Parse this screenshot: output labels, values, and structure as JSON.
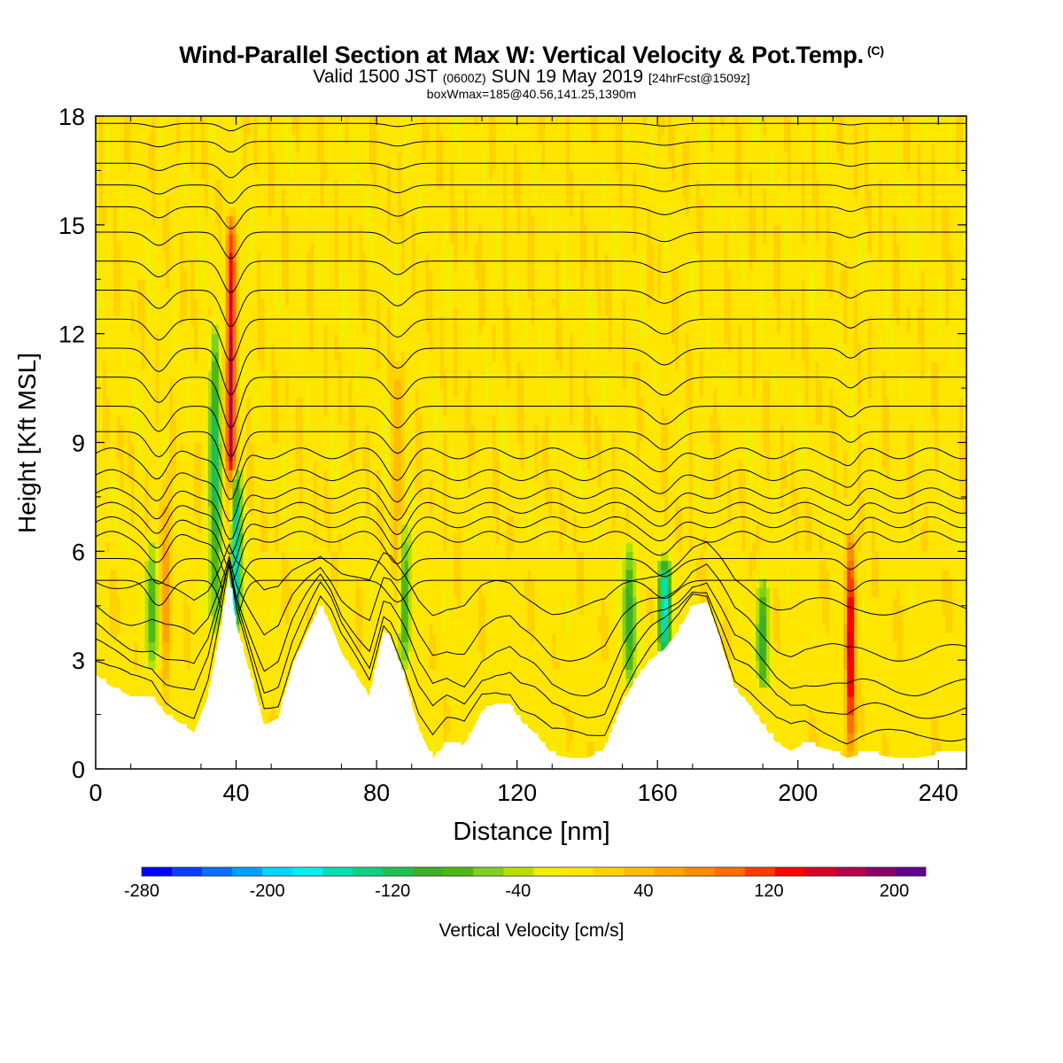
{
  "titles": {
    "main": "Wind-Parallel Section at Max W: Vertical Velocity & Pot.Temp.",
    "main_suffix": "(C)",
    "valid_a": "Valid 1500 JST",
    "valid_b": "(0600Z)",
    "valid_c": "SUN 19 May 2019",
    "valid_d": "[24hrFcst@1509z]",
    "box": "boxWmax=185@40.56,141.25,1390m"
  },
  "chart_data": {
    "type": "heatmap",
    "title": "Wind-Parallel Section at Max W: Vertical Velocity & Pot.Temp.",
    "xlabel": "Distance [nm]",
    "ylabel": "Height [Kft MSL]",
    "xlim": [
      0,
      248
    ],
    "ylim": [
      0,
      18
    ],
    "x_ticks": [
      0,
      40,
      80,
      120,
      160,
      200,
      240
    ],
    "y_ticks": [
      0,
      3,
      6,
      9,
      12,
      15,
      18
    ],
    "terrain_profile": {
      "x": [
        0,
        4,
        10,
        16,
        20,
        25,
        28,
        32,
        35,
        38,
        40,
        44,
        48,
        52,
        56,
        60,
        64,
        67,
        70,
        74,
        78,
        82,
        84,
        88,
        92,
        96,
        100,
        105,
        110,
        114,
        118,
        121,
        125,
        130,
        135,
        140,
        145,
        150,
        154,
        158,
        162,
        166,
        170,
        174,
        178,
        182,
        186,
        190,
        194,
        198,
        202,
        206,
        210,
        214,
        218,
        222,
        228,
        234,
        240,
        248
      ],
      "y": [
        2.6,
        2.3,
        2.0,
        2.0,
        1.5,
        1.2,
        1.0,
        2.0,
        3.5,
        5.3,
        4.0,
        2.6,
        1.2,
        1.4,
        2.8,
        3.7,
        4.5,
        4.0,
        3.2,
        2.6,
        2.0,
        3.8,
        3.6,
        2.5,
        1.1,
        0.3,
        0.7,
        0.6,
        1.6,
        1.8,
        1.8,
        1.3,
        1.0,
        0.4,
        0.3,
        0.3,
        0.5,
        1.8,
        2.5,
        3.0,
        3.3,
        3.8,
        4.5,
        4.6,
        3.5,
        2.2,
        1.8,
        1.2,
        0.7,
        0.5,
        0.7,
        0.6,
        0.5,
        0.3,
        0.4,
        0.4,
        0.3,
        0.3,
        0.4,
        0.4
      ]
    },
    "updraft_cores": [
      {
        "x": 38.5,
        "y_bottom": 5.3,
        "y_top": 15.0,
        "w_max": 185
      },
      {
        "x": 215.0,
        "y_bottom": 0.5,
        "y_top": 6.2,
        "w_max": 160
      },
      {
        "x": 20.0,
        "y_bottom": 2.0,
        "y_top": 8.0,
        "w_max": 60
      },
      {
        "x": 86.0,
        "y_bottom": 3.6,
        "y_top": 11.0,
        "w_max": 50
      }
    ],
    "downdraft_cores": [
      {
        "x": 34.0,
        "y_bottom": 4.0,
        "y_top": 12.0,
        "w_min": -120
      },
      {
        "x": 39.5,
        "y_bottom": 4.0,
        "y_top": 8.0,
        "w_min": -230
      },
      {
        "x": 16.0,
        "y_bottom": 3.0,
        "y_top": 6.0,
        "w_min": -80
      },
      {
        "x": 88.0,
        "y_bottom": 3.0,
        "y_top": 6.5,
        "w_min": -100
      },
      {
        "x": 152.0,
        "y_bottom": 2.5,
        "y_top": 6.0,
        "w_min": -110
      },
      {
        "x": 162.0,
        "y_bottom": 3.2,
        "y_top": 5.5,
        "w_min": -180
      },
      {
        "x": 190.0,
        "y_bottom": 2.5,
        "y_top": 5.0,
        "w_min": -100
      }
    ],
    "theta_contours_kft": [
      0.6,
      1.3,
      2.0,
      3.0,
      4.3,
      5.2,
      5.8,
      6.4,
      6.8,
      7.2,
      7.6,
      8.1,
      8.7,
      9.3,
      10.0,
      10.8,
      11.6,
      12.4,
      13.2,
      14.0,
      14.8,
      15.5,
      16.1,
      16.7,
      17.3,
      17.8
    ],
    "colorbar": {
      "label": "Vertical Velocity [cm/s]",
      "min": -280,
      "max": 220,
      "step": 20,
      "tick_values": [
        -280,
        -200,
        -120,
        -40,
        40,
        120,
        200
      ],
      "tick_labels": [
        "-280",
        "-200",
        "-120",
        "-40",
        "40",
        "120",
        "200"
      ],
      "colors": [
        "#0000ff",
        "#0a3cff",
        "#0a6eff",
        "#00a0ff",
        "#00d8ff",
        "#00f0f0",
        "#00e0b0",
        "#10d080",
        "#20c050",
        "#3cb028",
        "#50b814",
        "#80d020",
        "#b8e000",
        "#f0f000",
        "#ffe600",
        "#ffd200",
        "#ffbc00",
        "#ffa400",
        "#ff8c00",
        "#ff6e00",
        "#ff3c00",
        "#ff0000",
        "#dc0028",
        "#b4004a",
        "#8a0068",
        "#620090"
      ]
    },
    "grid": false
  }
}
